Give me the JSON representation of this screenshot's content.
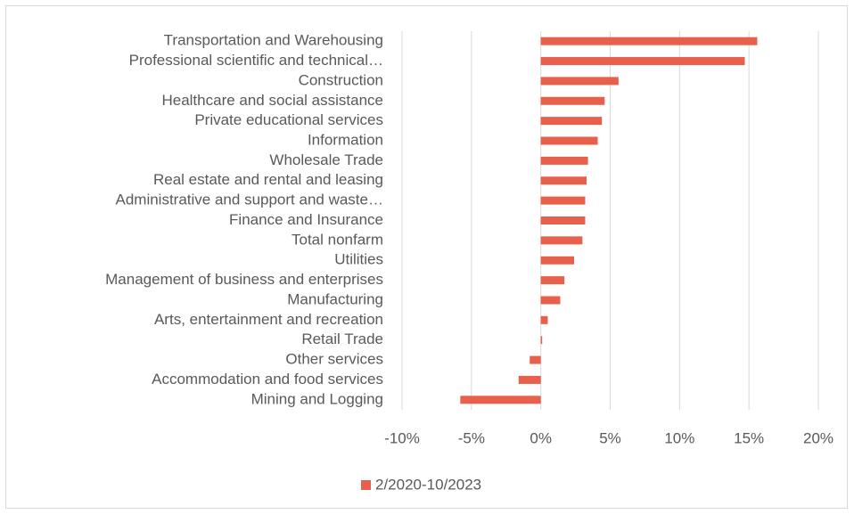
{
  "chart_data": {
    "type": "bar",
    "orientation": "horizontal",
    "categories": [
      "Transportation and Warehousing",
      "Professional scientific and technical…",
      "Construction",
      "Healthcare and social assistance",
      "Private educational services",
      "Information",
      "Wholesale Trade",
      "Real estate and rental and leasing",
      "Administrative and support and waste…",
      "Finance and Insurance",
      "Total nonfarm",
      "Utilities",
      "Management of business and enterprises",
      "Manufacturing",
      "Arts, entertainment and recreation",
      "Retail Trade",
      "Other services",
      "Accommodation and food services",
      "Mining and Logging"
    ],
    "series": [
      {
        "name": "2/2020-10/2023",
        "color": "#e8604c",
        "values": [
          15.6,
          14.7,
          5.6,
          4.6,
          4.4,
          4.1,
          3.4,
          3.3,
          3.2,
          3.2,
          3.0,
          2.4,
          1.7,
          1.4,
          0.5,
          0.1,
          -0.8,
          -1.6,
          -5.8
        ]
      }
    ],
    "xlim": [
      -10,
      20
    ],
    "xticks": [
      {
        "value": -10,
        "label": "-10%"
      },
      {
        "value": -5,
        "label": "-5%"
      },
      {
        "value": 0,
        "label": "0%"
      },
      {
        "value": 5,
        "label": "5%"
      },
      {
        "value": 10,
        "label": "10%"
      },
      {
        "value": 15,
        "label": "15%"
      },
      {
        "value": 20,
        "label": "20%"
      }
    ],
    "grid": true,
    "legend": "bottom"
  }
}
